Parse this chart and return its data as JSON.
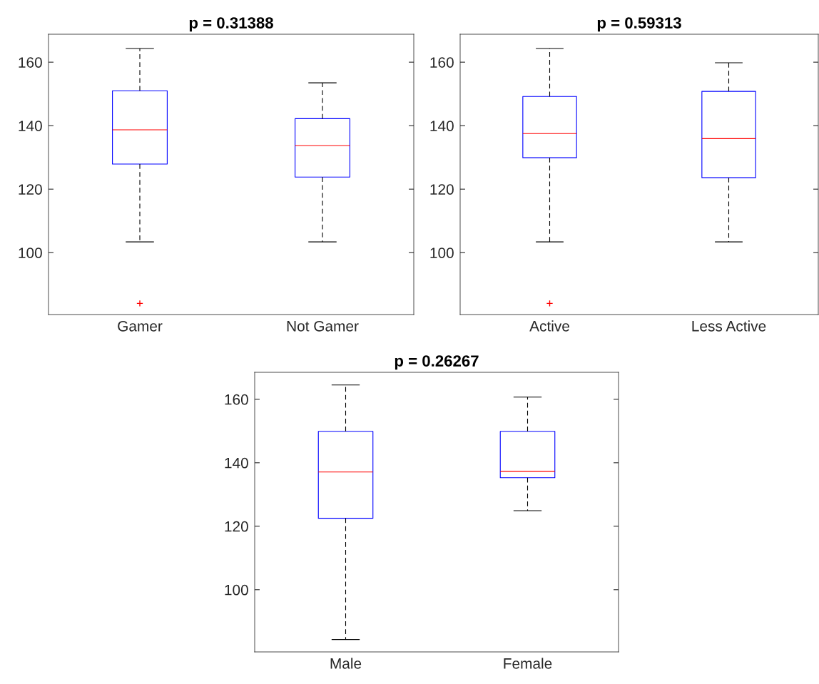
{
  "chart_data": [
    {
      "type": "box",
      "title": "p = 0.31388",
      "categories": [
        "Gamer",
        "Not Gamer"
      ],
      "boxes": [
        {
          "low": 103.4,
          "q1": 127.9,
          "median": 138.7,
          "q3": 151.0,
          "high": 164.3,
          "outliers": [
            84.0
          ]
        },
        {
          "low": 103.4,
          "q1": 123.8,
          "median": 133.7,
          "q3": 142.2,
          "high": 153.5
        }
      ],
      "color": "#0000ff",
      "ylim": [
        80.5,
        168.8
      ],
      "yticks": [
        100,
        120,
        140,
        160
      ],
      "grid": false
    },
    {
      "type": "box",
      "title": "p = 0.59313",
      "categories": [
        "Active",
        "Less Active"
      ],
      "boxes": [
        {
          "low": 103.4,
          "q1": 129.9,
          "median": 137.5,
          "q3": 149.2,
          "high": 164.3,
          "outliers": [
            84.0
          ]
        },
        {
          "low": 103.4,
          "q1": 123.6,
          "median": 135.9,
          "q3": 150.8,
          "high": 159.8
        }
      ],
      "color": "#0000ff",
      "ylim": [
        80.5,
        168.8
      ],
      "yticks": [
        100,
        120,
        140,
        160
      ],
      "grid": false
    },
    {
      "type": "box",
      "title": "p = 0.26267",
      "categories": [
        "Male",
        "Female"
      ],
      "boxes": [
        {
          "low": 84.3,
          "q1": 122.5,
          "median": 137.1,
          "q3": 149.9,
          "high": 164.5
        },
        {
          "low": 124.9,
          "q1": 135.3,
          "median": 137.3,
          "q3": 149.9,
          "high": 160.7
        }
      ],
      "color": "#0000ff",
      "ylim": [
        80.4,
        168.5
      ],
      "yticks": [
        100,
        120,
        140,
        160
      ],
      "grid": false
    }
  ]
}
